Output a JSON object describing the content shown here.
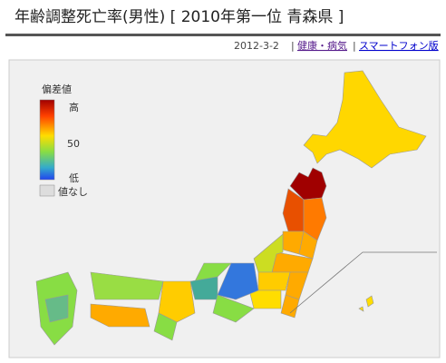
{
  "header": {
    "title": "年齢調整死亡率(男性) [ 2010年第一位 青森県 ]",
    "date": "2012-3-2",
    "separator": "|",
    "links": [
      "健康・病気",
      "スマートフォン版"
    ]
  },
  "legend": {
    "title": "偏差値",
    "high": "高",
    "mid": 50,
    "low": "低",
    "none": "値なし"
  }
}
